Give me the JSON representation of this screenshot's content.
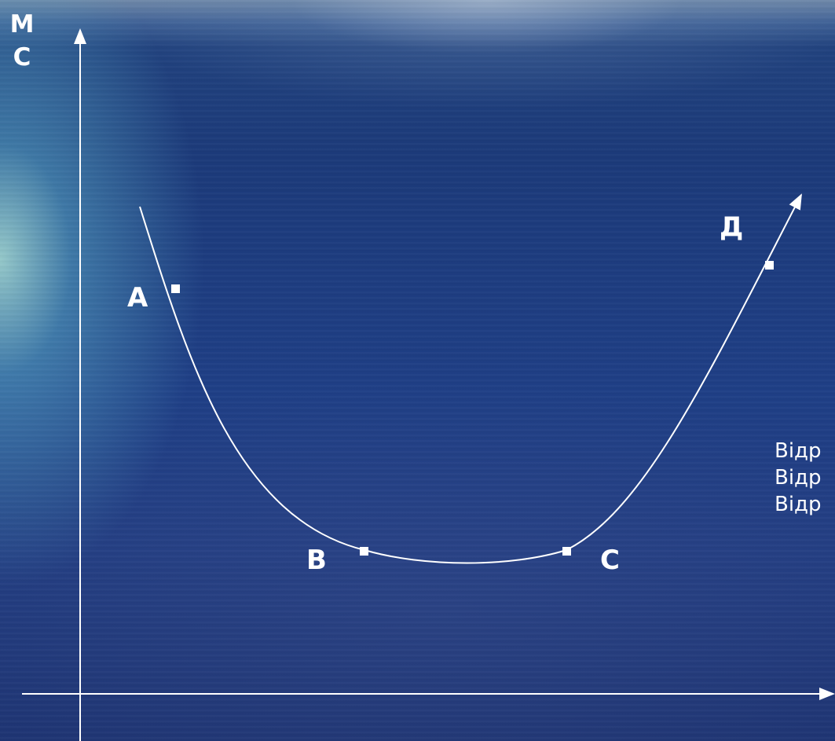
{
  "axis": {
    "y_label_line1": "М",
    "y_label_line2": "С"
  },
  "points": {
    "a": "А",
    "b": "В",
    "c": "С",
    "d": "Д"
  },
  "legend": [
    "Відр",
    "Відр",
    "Відр"
  ],
  "colors": {
    "line": "#ffffff",
    "background": "#1f3f86"
  }
}
